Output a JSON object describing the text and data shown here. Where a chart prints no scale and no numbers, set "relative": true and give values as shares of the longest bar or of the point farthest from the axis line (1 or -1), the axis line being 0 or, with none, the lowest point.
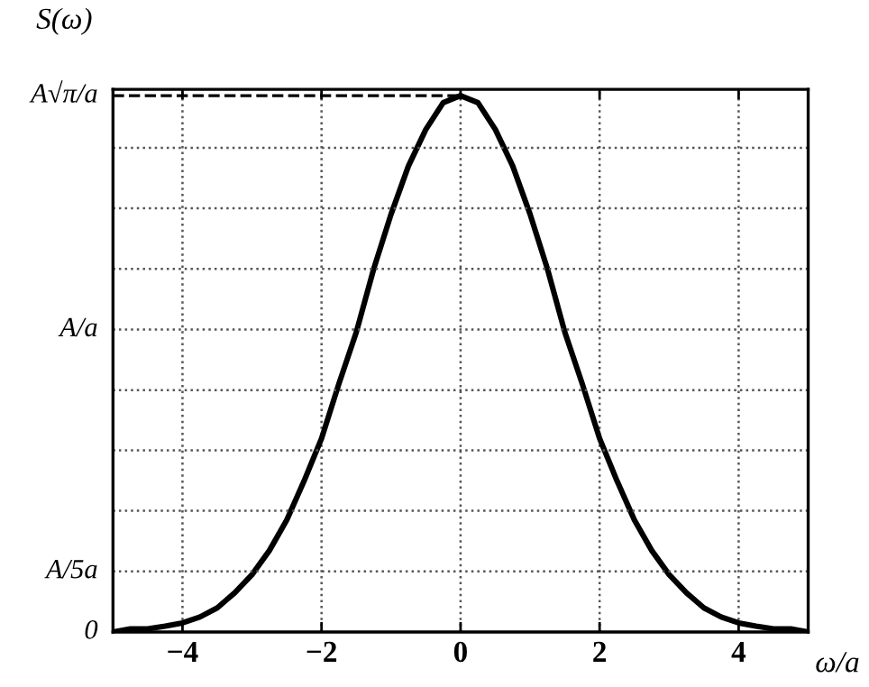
{
  "chart_data": {
    "type": "line",
    "ylabel": "S(ω)",
    "xlabel": "ω/a",
    "relative": true,
    "x": [
      -5,
      -4.75,
      -4.5,
      -4.25,
      -4,
      -3.75,
      -3.5,
      -3.25,
      -3,
      -2.75,
      -2.5,
      -2.25,
      -2,
      -1.75,
      -1.5,
      -1.25,
      -1,
      -0.75,
      -0.5,
      -0.25,
      0,
      0.25,
      0.5,
      0.75,
      1,
      1.25,
      1.5,
      1.75,
      2,
      2.25,
      2.5,
      2.75,
      3,
      3.25,
      3.5,
      3.75,
      4,
      4.25,
      4.5,
      4.75,
      5
    ],
    "series": [
      {
        "color": "#000000",
        "values": [
          0.0,
          0.006,
          0.006,
          0.011,
          0.017,
          0.028,
          0.045,
          0.073,
          0.107,
          0.152,
          0.209,
          0.282,
          0.361,
          0.463,
          0.559,
          0.677,
          0.779,
          0.869,
          0.937,
          0.987,
          1,
          0.987,
          0.937,
          0.869,
          0.779,
          0.677,
          0.559,
          0.463,
          0.361,
          0.282,
          0.209,
          0.152,
          0.107,
          0.073,
          0.045,
          0.028,
          0.017,
          0.011,
          0.006,
          0.006,
          0.0
        ]
      }
    ],
    "xlim": [
      -5,
      5
    ],
    "xticks": [
      -4,
      -2,
      0,
      2,
      4
    ],
    "ref_lines": [
      {
        "axis": "y",
        "value": 1,
        "line_style": "dashed",
        "color": "#000000",
        "label": "A√π/a"
      },
      {
        "axis": "y",
        "value": 0.113,
        "line_style": "dotted",
        "color": "#555555",
        "label": "A/5a"
      },
      {
        "axis": "y",
        "value": 0.564,
        "line_style": "dotted",
        "color": "#555555",
        "label": "A/a"
      },
      {
        "axis": "y",
        "value": 0.226,
        "line_style": "dotted",
        "color": "#555555"
      },
      {
        "axis": "y",
        "value": 0.339,
        "line_style": "dotted",
        "color": "#555555"
      },
      {
        "axis": "y",
        "value": 0.451,
        "line_style": "dotted",
        "color": "#555555"
      },
      {
        "axis": "y",
        "value": 0.677,
        "line_style": "dotted",
        "color": "#555555"
      },
      {
        "axis": "y",
        "value": 0.79,
        "line_style": "dotted",
        "color": "#555555"
      },
      {
        "axis": "y",
        "value": 0.903,
        "line_style": "dotted",
        "color": "#555555"
      }
    ],
    "annotations": [
      "0"
    ],
    "grid": "x",
    "line_style": "solid",
    "marker": "none",
    "legend": false
  }
}
